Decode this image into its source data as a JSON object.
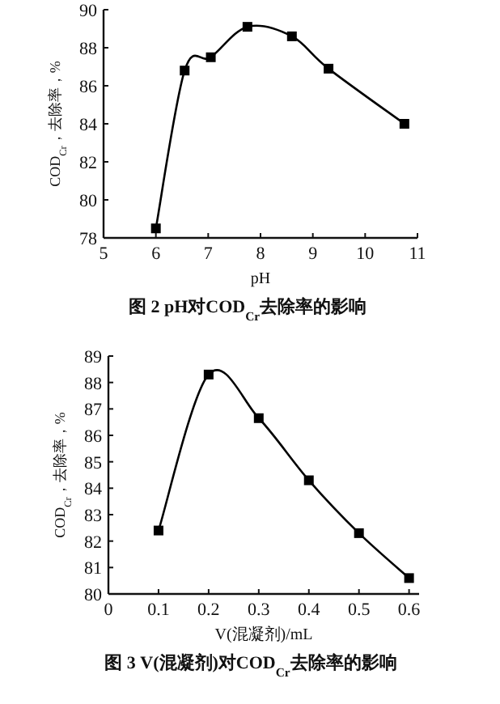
{
  "chart_data": [
    {
      "type": "line",
      "title": "图 2 pH对COD$_{Cr}$去除率的影响",
      "xlabel": "pH",
      "ylabel": "COD$_{Cr}$，去除率，%",
      "x": [
        6.0,
        6.55,
        7.05,
        7.75,
        8.6,
        9.3,
        10.75
      ],
      "series": [
        {
          "color": "#000000",
          "values": [
            78.5,
            86.8,
            87.5,
            89.1,
            88.6,
            86.9,
            84.0
          ]
        }
      ],
      "xlim": [
        5,
        11
      ],
      "xticks": [
        5,
        6,
        7,
        8,
        9,
        10,
        11
      ],
      "ylim": [
        78,
        90
      ],
      "yticks": [
        78,
        80,
        82,
        84,
        86,
        88,
        90
      ],
      "marker": "square",
      "line_style": "solid"
    },
    {
      "type": "line",
      "title": "图 3 V(混凝剂)对COD$_{Cr}$去除率的影响",
      "xlabel": "V(混凝剂)/mL",
      "ylabel": "COD$_{Cr}$，去除率，%",
      "x": [
        0.1,
        0.2,
        0.3,
        0.4,
        0.5,
        0.6
      ],
      "series": [
        {
          "color": "#000000",
          "values": [
            82.4,
            88.3,
            86.65,
            84.3,
            82.3,
            80.6
          ]
        }
      ],
      "xlim": [
        0,
        0.62
      ],
      "xticks": [
        0,
        0.1,
        0.2,
        0.3,
        0.4,
        0.5,
        0.6
      ],
      "ylim": [
        80,
        89
      ],
      "yticks": [
        80,
        81,
        82,
        83,
        84,
        85,
        86,
        87,
        88,
        89
      ],
      "marker": "square",
      "line_style": "solid"
    }
  ]
}
